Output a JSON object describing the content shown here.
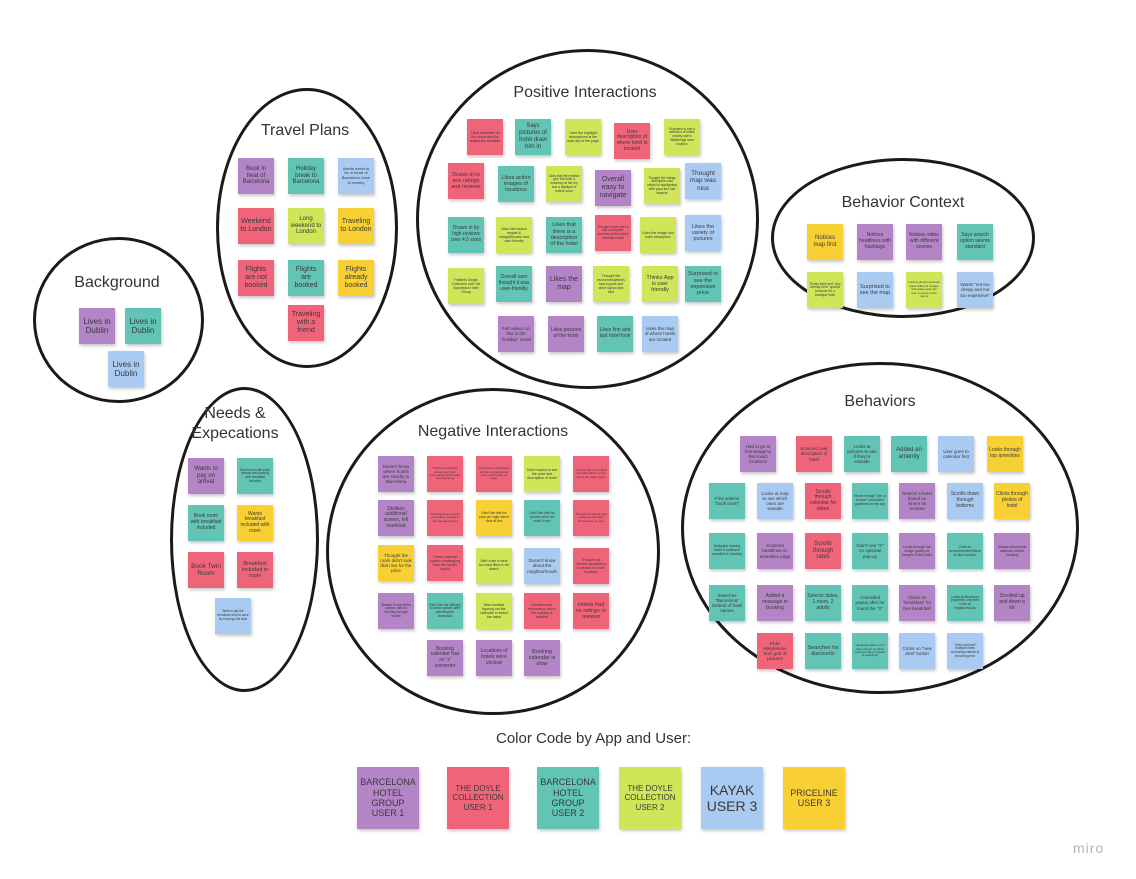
{
  "board": {
    "clusters": [
      {
        "title": "Background",
        "notes": [
          {
            "text": "Lives in Dublin",
            "color": "purple"
          },
          {
            "text": "Lives in Dublin",
            "color": "teal"
          },
          {
            "text": "Lives in Dublin",
            "color": "blue"
          }
        ]
      },
      {
        "title": "Travel Plans",
        "notes": [
          {
            "text": "Book in heat of Barcelona",
            "color": "purple"
          },
          {
            "text": "Holiday break to Barcelona",
            "color": "teal"
          },
          {
            "text": "Wants travel to be in heart of Barcelona close to nearby",
            "color": "blue"
          },
          {
            "text": "Weekend to London",
            "color": "pink"
          },
          {
            "text": "Long weekend to London",
            "color": "lime"
          },
          {
            "text": "Traveling to London",
            "color": "yellow"
          },
          {
            "text": "Flights are not booked",
            "color": "pink"
          },
          {
            "text": "Flights are booked",
            "color": "teal"
          },
          {
            "text": "Flights already booked",
            "color": "yellow"
          },
          {
            "text": "Traveling with a friend",
            "color": "pink"
          }
        ]
      },
      {
        "title": "Positive Interactions",
        "notes": [
          {
            "text": "Liked amenities at the resort and the restaurant available",
            "color": "pink"
          },
          {
            "text": "Says pictures of hotel draw him in",
            "color": "teal"
          },
          {
            "text": "Likes the highlight descriptions at the main top of the page",
            "color": "lime"
          },
          {
            "text": "User description of where hotel is located",
            "color": "pink"
          },
          {
            "text": "Surprised to see a selection of hotels nearby user's Ballsbridge area location",
            "color": "lime"
          },
          {
            "text": "Drawn in to see ratings and reviews",
            "color": "pink"
          },
          {
            "text": "Likes action images of locations",
            "color": "teal"
          },
          {
            "text": "Likes that the reviews give the hotel a summary at the top and a highlight of review score",
            "color": "lime"
          },
          {
            "text": "Overall easy to navigate",
            "color": "purple"
          },
          {
            "text": "Thought the ratings description was helpful in highlighting both good and bad aspects",
            "color": "lime"
          },
          {
            "text": "Thought map was nice",
            "color": "blue"
          },
          {
            "text": "Drawn in by high reviews over 4.5 stars",
            "color": "teal"
          },
          {
            "text": "Likes fast search engine & straightforward and user friendly",
            "color": "lime"
          },
          {
            "text": "Likes that there is a description of the hotel",
            "color": "teal"
          },
          {
            "text": "Thought it was nice to see a complete overview of the hotel's amenities listed",
            "color": "pink"
          },
          {
            "text": "Likes the image and hotel description",
            "color": "lime"
          },
          {
            "text": "Likes the variety of pictures",
            "color": "blue"
          },
          {
            "text": "Patients Single Collection over the Barcelona Hotel Group",
            "color": "lime"
          },
          {
            "text": "Overall user thought it was user-friendly",
            "color": "teal"
          },
          {
            "text": "Likes the map",
            "color": "purple"
          },
          {
            "text": "Thought the recommendations had a good and clear layout and nice",
            "color": "lime"
          },
          {
            "text": "Thinks App is user friendly",
            "color": "lime"
          },
          {
            "text": "Surprised to see the expensive price",
            "color": "teal"
          },
          {
            "text": "Felt videos on this in the \"holiday\" mood",
            "color": "purple"
          },
          {
            "text": "Likes pictures of the hotel",
            "color": "purple"
          },
          {
            "text": "Likes first and last hotel look",
            "color": "teal"
          },
          {
            "text": "Likes the map of where hotels are located",
            "color": "blue"
          }
        ]
      },
      {
        "title": "Behavior Context",
        "notes": [
          {
            "text": "Notices map first",
            "color": "yellow"
          },
          {
            "text": "Notices headlines with hashtags",
            "color": "purple"
          },
          {
            "text": "Notices video with different scenes",
            "color": "purple"
          },
          {
            "text": "Says search option seems standard",
            "color": "teal"
          },
          {
            "text": "Thinks there isn't \"any overlap here\" options because it's a boutique hotel",
            "color": "lime"
          },
          {
            "text": "Surprised to see the map",
            "color": "blue"
          },
          {
            "text": "Look at photos because these different images and videos give the user a sense of the rooms",
            "color": "lime"
          },
          {
            "text": "Wants \"not too cheap and not too expensive\"",
            "color": "blue"
          }
        ]
      },
      {
        "title": "Needs & Expecations",
        "notes": [
          {
            "text": "Wants to pay on arrival",
            "color": "purple"
          },
          {
            "text": "Book room with easy access and parking with breakfast included",
            "color": "teal"
          },
          {
            "text": "Book room with breakfast included",
            "color": "teal"
          },
          {
            "text": "Wants breakfast included with room",
            "color": "yellow"
          },
          {
            "text": "Book Twin Room",
            "color": "pink"
          },
          {
            "text": "Breakfast included in room",
            "color": "pink"
          },
          {
            "text": "Want to get the breakfast deal to save by booking this deal",
            "color": "blue"
          }
        ]
      },
      {
        "title": "Negative Interactions",
        "notes": [
          {
            "text": "Doesn't know where hotels are exactly in Barcelona",
            "color": "purple"
          },
          {
            "text": "Thinks the website shows too much information which was overwhelming",
            "color": "pink"
          },
          {
            "text": "Thought the description felt too overwhelming and couldn't stay on page",
            "color": "pink"
          },
          {
            "text": "Didn't expect to see the price and description of hotel",
            "color": "lime"
          },
          {
            "text": "Couldn't figure out what the information on the top of the page meant",
            "color": "pink"
          },
          {
            "text": "Dislikes additional screen, felt overload",
            "color": "purple"
          },
          {
            "text": "Didn't like the amount of scrolling needed to see the description",
            "color": "pink"
          },
          {
            "text": "Didn't like that the price per night wasn't clear at first",
            "color": "yellow"
          },
          {
            "text": "Didn't like that the pictures were too small to see",
            "color": "teal"
          },
          {
            "text": "Thought the layout was confusing and didn't know where to start",
            "color": "pink"
          },
          {
            "text": "Thought the room didn't look that nice for the price",
            "color": "yellow"
          },
          {
            "text": "Thinks calendar system challenging from the mobile layout",
            "color": "pink"
          },
          {
            "text": "Didn't want to have too many filters in the search",
            "color": "lime"
          },
          {
            "text": "Doesn't know about the neighborhoods",
            "color": "blue"
          },
          {
            "text": "Thought she needed permission to search for hotel locations",
            "color": "pink"
          },
          {
            "text": "Wanted to see all the options without scrolling through results",
            "color": "purple"
          },
          {
            "text": "Didn't like the difficulty to select options after selecting the Barcelona",
            "color": "teal"
          },
          {
            "text": "Was troubled figuring out the calendar to select the dates",
            "color": "lime"
          },
          {
            "text": "Wanted more information about the building & location",
            "color": "pink"
          },
          {
            "text": "Hotels had no ratings or reviews",
            "color": "pink"
          },
          {
            "text": "Booking calendar has no 'x' converter",
            "color": "purple"
          },
          {
            "text": "Locations of hotels were unclear",
            "color": "purple"
          },
          {
            "text": "Booking calendar is slow",
            "color": "purple"
          }
        ]
      },
      {
        "title": "Behaviors",
        "notes": [
          {
            "text": "Had to go to homepage to find exact locations",
            "color": "purple"
          },
          {
            "text": "Scanned over description of hotel",
            "color": "pink"
          },
          {
            "text": "Looks at pictures to see if they're seaside",
            "color": "teal"
          },
          {
            "text": "Added an amenity",
            "color": "teal"
          },
          {
            "text": "User goes to calendar first",
            "color": "blue"
          },
          {
            "text": "Looks through top amenities",
            "color": "yellow"
          },
          {
            "text": "First selects \"book room\"",
            "color": "teal"
          },
          {
            "text": "Looks at map to see which ones are seaside",
            "color": "blue"
          },
          {
            "text": "Scrolls through calendar for dates",
            "color": "pink"
          },
          {
            "text": "Reads through \"join or browse\" discounted guidelines for the app",
            "color": "teal"
          },
          {
            "text": "Selects a hotel based on where its reviews",
            "color": "purple"
          },
          {
            "text": "Scrolls down through bottoms",
            "color": "blue"
          },
          {
            "text": "Clicks through photos of hotel",
            "color": "yellow"
          },
          {
            "text": "Navigates booking dates & additional amenities & checking",
            "color": "teal"
          },
          {
            "text": "Scanned headlines on amenities page",
            "color": "purple"
          },
          {
            "text": "Scrolls through rates",
            "color": "pink"
          },
          {
            "text": "Didn't see \"X\" on optional pop-up",
            "color": "teal"
          },
          {
            "text": "Looks through the image gallery of images of the hotel",
            "color": "purple"
          },
          {
            "text": "Goes to recommended filters to find location",
            "color": "teal"
          },
          {
            "text": "Always checks the calendar before booking",
            "color": "purple"
          },
          {
            "text": "Searches \"Barcelona\" instead of hotel names",
            "color": "teal"
          },
          {
            "text": "Added a massage to booking",
            "color": "purple"
          },
          {
            "text": "Selects dates, 1 room, 2 adults",
            "color": "teal"
          },
          {
            "text": "Cancelled popup after he found the \"X\"",
            "color": "teal"
          },
          {
            "text": "Clicks on \"breakfast\" for free breakfast",
            "color": "purple"
          },
          {
            "text": "Looks at Barcelona properties only then looks at neighborhoods",
            "color": "teal"
          },
          {
            "text": "Scrolled up and down a lot",
            "color": "purple"
          },
          {
            "text": "Picks Marylebone from grid of pictures",
            "color": "pink"
          },
          {
            "text": "Searches for discounts",
            "color": "teal"
          },
          {
            "text": "Navigated back to the main screen to check previous filters instead of searching",
            "color": "teal"
          },
          {
            "text": "Clicks on \"new deal\" button",
            "color": "blue"
          },
          {
            "text": "\"Select amount\" multiple times confusing instead of choosing price",
            "color": "blue"
          }
        ]
      }
    ]
  },
  "legend": {
    "title": "Color Code by App and User:",
    "items": [
      {
        "text": "BARCELONA HOTEL GROUP USER 1",
        "color": "purple"
      },
      {
        "text": "THE DOYLE COLLECTION USER 1",
        "color": "pink"
      },
      {
        "text": "BARCELONA HOTEL GROUP USER 2",
        "color": "teal"
      },
      {
        "text": "THE DOYLE COLLECTION USER 2",
        "color": "lime"
      },
      {
        "text": "KAYAK USER 3",
        "color": "blue"
      },
      {
        "text": "PRICELINE USER 3",
        "color": "yellow"
      }
    ]
  },
  "watermark": "miro",
  "colors": {
    "purple": "#b384c6",
    "pink": "#f0647a",
    "teal": "#62c4b4",
    "lime": "#cfe659",
    "blue": "#a9cbf2",
    "yellow": "#f9d033"
  }
}
